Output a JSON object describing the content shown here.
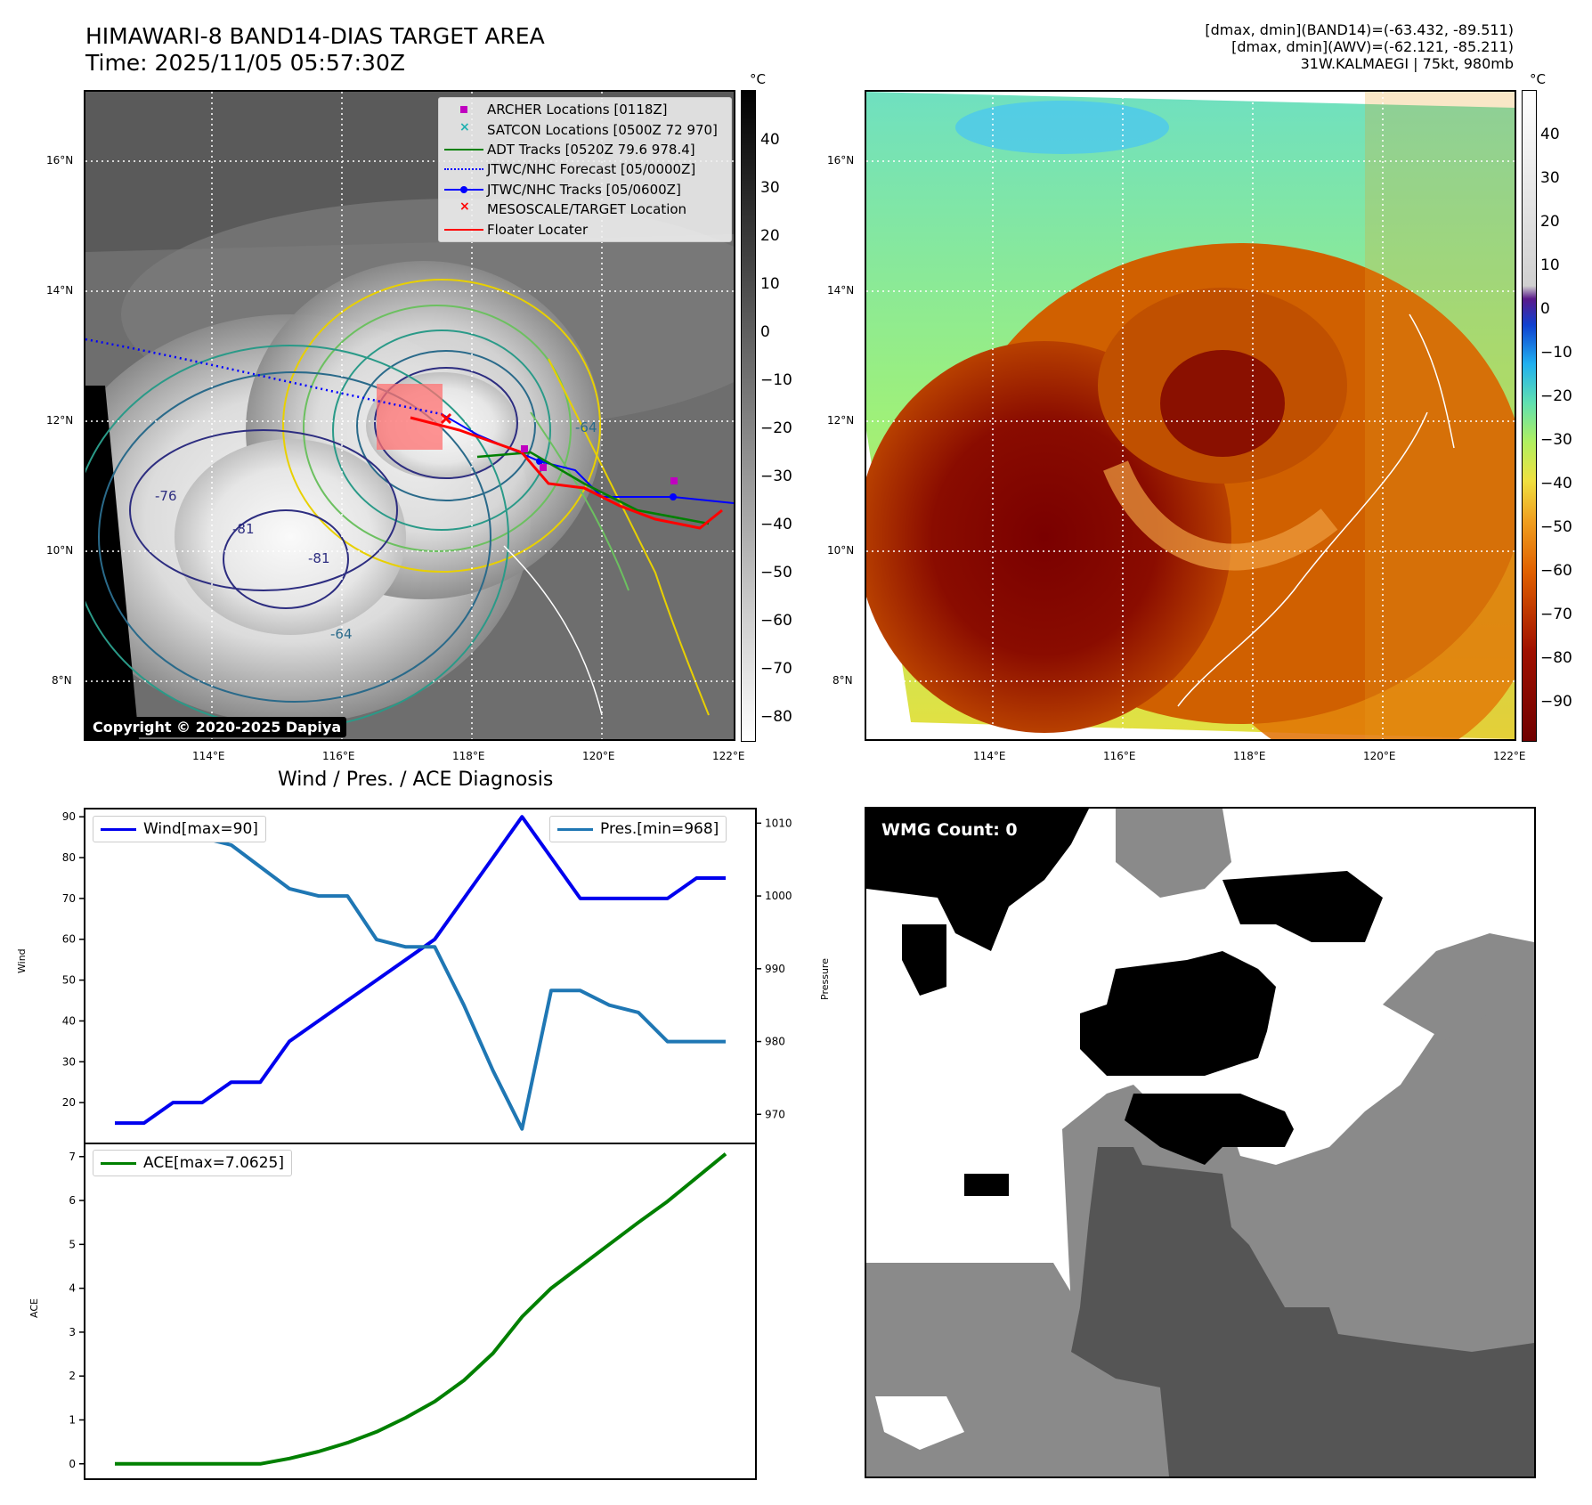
{
  "header": {
    "title_line1": "HIMAWARI-8 BAND14-DIAS TARGET AREA",
    "title_line2": "Time: 2025/11/05 05:57:30Z",
    "info_line1": "[dmax, dmin](BAND14)=(-63.432, -89.511)",
    "info_line2": "[dmax, dmin](AWV)=(-62.121, -85.211)",
    "info_line3": "31W.KALMAEGI | 75kt, 980mb"
  },
  "map": {
    "lon_ticks": [
      "114°E",
      "116°E",
      "118°E",
      "120°E",
      "122°E"
    ],
    "lat_ticks": [
      "16°N",
      "14°N",
      "12°N",
      "10°N",
      "8°N"
    ],
    "copyright": "Copyright © 2020-2025 Dapiya",
    "legend": [
      {
        "label": "ARCHER Locations [0118Z]",
        "color": "#c000c0",
        "marker": "square"
      },
      {
        "label": "SATCON Locations [0500Z 72 970]",
        "color": "#20b0b0",
        "marker": "x"
      },
      {
        "label": "ADT Tracks [0520Z 79.6 978.4]",
        "color": "#008000",
        "marker": "line"
      },
      {
        "label": "JTWC/NHC Forecast [05/0000Z]",
        "color": "#0000ff",
        "marker": "dotted"
      },
      {
        "label": "JTWC/NHC Tracks [05/0600Z]",
        "color": "#0000ff",
        "marker": "line-dot"
      },
      {
        "label": "MESOSCALE/TARGET Location",
        "color": "#ff0000",
        "marker": "x"
      },
      {
        "label": "Floater Locater",
        "color": "#ff0000",
        "marker": "line"
      }
    ],
    "contour_labels": [
      "-76",
      "-81",
      "-81",
      "-64",
      "-64"
    ]
  },
  "colorbar_left": {
    "unit": "°C",
    "ticks": [
      "40",
      "30",
      "20",
      "10",
      "0",
      "−10",
      "−20",
      "−30",
      "−40",
      "−50",
      "−60",
      "−70",
      "−80"
    ]
  },
  "colorbar_right": {
    "unit": "°C",
    "ticks": [
      "40",
      "30",
      "20",
      "10",
      "0",
      "−10",
      "−20",
      "−30",
      "−40",
      "−50",
      "−60",
      "−70",
      "−80",
      "−90"
    ]
  },
  "diagnosis": {
    "title": "Wind / Pres. / ACE Diagnosis",
    "wind_label": "Wind",
    "pres_label": "Pressure",
    "ace_label": "ACE",
    "wind_legend": "Wind[max=90]",
    "pres_legend": "Pres.[min=968]",
    "ace_legend": "ACE[max=7.0625]"
  },
  "wmg": {
    "count_label": "WMG Count: 0"
  },
  "chart_data": [
    {
      "type": "line",
      "title": "Wind / Pres. / ACE Diagnosis",
      "x": [
        0,
        1,
        2,
        3,
        4,
        5,
        6,
        7,
        8,
        9,
        10,
        11,
        12,
        13,
        14,
        15,
        16,
        17,
        18,
        19,
        20,
        21
      ],
      "series": [
        {
          "name": "Wind[max=90]",
          "axis": "left",
          "color": "#0000ee",
          "values": [
            15,
            15,
            20,
            20,
            25,
            25,
            35,
            40,
            45,
            50,
            55,
            60,
            70,
            80,
            90,
            80,
            70,
            70,
            70,
            70,
            75,
            75
          ]
        }
      ],
      "ylabel": "Wind",
      "ylim": [
        10,
        92
      ],
      "yticks": [
        20,
        30,
        40,
        50,
        60,
        70,
        80,
        90
      ]
    },
    {
      "type": "line",
      "x": [
        0,
        1,
        2,
        3,
        4,
        5,
        6,
        7,
        8,
        9,
        10,
        11,
        12,
        13,
        14,
        15,
        16,
        17,
        18,
        19,
        20,
        21
      ],
      "series": [
        {
          "name": "Pres.[min=968]",
          "axis": "right",
          "color": "#1f77b4",
          "values": [
            1010,
            1008,
            1008,
            1008,
            1007,
            1004,
            1001,
            1000,
            1000,
            994,
            993,
            993,
            985,
            976,
            968,
            987,
            987,
            985,
            984,
            980,
            980,
            980
          ]
        }
      ],
      "ylabel": "Pressure",
      "ylim": [
        966,
        1012
      ],
      "yticks": [
        970,
        980,
        990,
        1000,
        1010
      ]
    },
    {
      "type": "line",
      "x": [
        0,
        1,
        2,
        3,
        4,
        5,
        6,
        7,
        8,
        9,
        10,
        11,
        12,
        13,
        14,
        15,
        16,
        17,
        18,
        19,
        20,
        21
      ],
      "series": [
        {
          "name": "ACE[max=7.0625]",
          "color": "#008000",
          "values": [
            0,
            0,
            0,
            0,
            0,
            0,
            0.12,
            0.28,
            0.48,
            0.73,
            1.05,
            1.42,
            1.9,
            2.52,
            3.35,
            4.0,
            4.5,
            5.0,
            5.5,
            5.98,
            6.52,
            7.0625
          ]
        }
      ],
      "ylabel": "ACE",
      "ylim": [
        -0.35,
        7.3
      ],
      "yticks": [
        0,
        1,
        2,
        3,
        4,
        5,
        6,
        7
      ]
    }
  ]
}
